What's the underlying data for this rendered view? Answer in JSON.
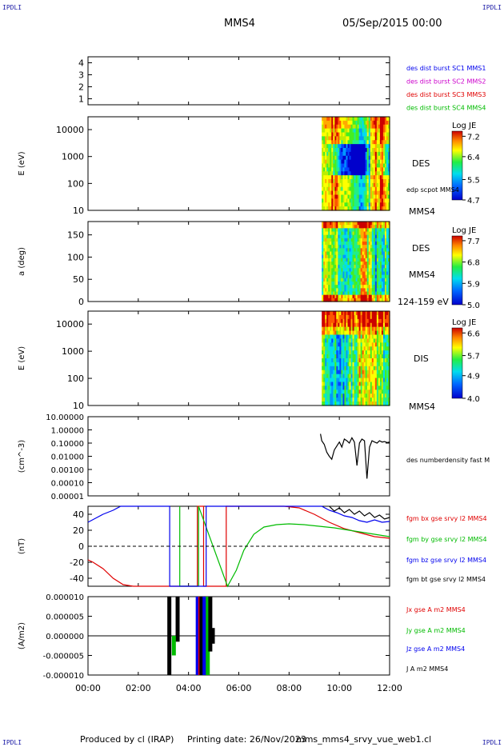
{
  "header": {
    "corner_tl": "IPDLI",
    "corner_tr": "IPDLI",
    "spacecraft": "MMS4",
    "date": "05/Sep/2015 00:00"
  },
  "footer": {
    "produced_by": "Produced by cl (IRAP)",
    "printing_date": "Printing date: 26/Nov/2023",
    "filename": "mms_mms4_srvy_vue_web1.cl",
    "corner_bl": "IPDLI",
    "corner_br": "IPDLI"
  },
  "time_axis": {
    "range_hours": [
      0,
      12
    ],
    "ticks": [
      "00:00",
      "02:00",
      "04:00",
      "06:00",
      "08:00",
      "10:00",
      "12:00"
    ],
    "tick_hours": [
      0,
      2,
      4,
      6,
      8,
      10,
      12
    ]
  },
  "colors": {
    "mms1": "#0000ee",
    "mms2": "#cc00cc",
    "mms3": "#e00000",
    "mms4": "#00bb00",
    "bx": "#e00000",
    "by": "#00bb00",
    "bz": "#0000ee",
    "bt": "#000000"
  },
  "chart_data": [
    {
      "type": "line",
      "name": "burst availability",
      "ylabel": "",
      "ylim": [
        0.5,
        4.5
      ],
      "yticks": [
        "1",
        "2",
        "3",
        "4"
      ],
      "legend": [
        {
          "label": "des dist burst SC1 MMS1",
          "color": "#0000ee"
        },
        {
          "label": "des dist burst SC2 MMS2",
          "color": "#cc00cc"
        },
        {
          "label": "des dist burst SC3 MMS3",
          "color": "#e00000"
        },
        {
          "label": "des dist burst SC4 MMS4",
          "color": "#00bb00"
        }
      ]
    },
    {
      "type": "heatmap",
      "name": "DES energy spectrogram",
      "ylabel": "E (eV)",
      "yscale": "log",
      "ylim": [
        10,
        30000
      ],
      "yticks": [
        "10",
        "100",
        "1000",
        "10000"
      ],
      "x_start_hours": 9.3,
      "colorbar": {
        "label": "Log JE",
        "ticks": [
          "7.2",
          "6.4",
          "5.5",
          "4.7"
        ],
        "min": 4.7,
        "max": 7.4
      },
      "labels": [
        "DES",
        "edp scpot MMS4",
        "MMS4"
      ]
    },
    {
      "type": "heatmap",
      "name": "DES pitch angle",
      "ylabel": "a (deg)",
      "ylim": [
        0,
        180
      ],
      "yticks": [
        "0",
        "50",
        "100",
        "150"
      ],
      "x_start_hours": 9.3,
      "colorbar": {
        "label": "Log JE",
        "ticks": [
          "7.7",
          "6.8",
          "5.9",
          "5.0"
        ],
        "min": 5.0,
        "max": 7.9
      },
      "labels": [
        "DES",
        "MMS4",
        "124-159 eV"
      ]
    },
    {
      "type": "heatmap",
      "name": "DIS energy spectrogram",
      "ylabel": "E (eV)",
      "yscale": "log",
      "ylim": [
        10,
        30000
      ],
      "yticks": [
        "10",
        "100",
        "1000",
        "10000"
      ],
      "x_start_hours": 9.3,
      "colorbar": {
        "label": "Log JE",
        "ticks": [
          "6.6",
          "5.7",
          "4.9",
          "4.0"
        ],
        "min": 4.0,
        "max": 6.8
      },
      "labels": [
        "DIS",
        "MMS4"
      ]
    },
    {
      "type": "line",
      "name": "density",
      "ylabel": "(cm^-3)",
      "yscale": "log",
      "ylim": [
        1e-05,
        10
      ],
      "yticks": [
        "10.00000",
        "1.00000",
        "0.10000",
        "0.01000",
        "0.00100",
        "0.00010",
        "0.00001"
      ],
      "series": [
        {
          "label": "des numberdensity fast M",
          "color": "#000000",
          "x": [
            9.25,
            9.3,
            9.4,
            9.5,
            9.6,
            9.7,
            9.8,
            9.9,
            10.0,
            10.1,
            10.2,
            10.3,
            10.4,
            10.5,
            10.6,
            10.7,
            10.8,
            10.9,
            11.0,
            11.1,
            11.2,
            11.3,
            11.4,
            11.5,
            11.6,
            11.7,
            11.8,
            11.9,
            12.0
          ],
          "y": [
            0.5,
            0.15,
            0.08,
            0.02,
            0.01,
            0.006,
            0.03,
            0.06,
            0.12,
            0.05,
            0.2,
            0.15,
            0.1,
            0.25,
            0.12,
            0.002,
            0.1,
            0.2,
            0.15,
            0.0002,
            0.05,
            0.15,
            0.12,
            0.1,
            0.15,
            0.12,
            0.13,
            0.11,
            0.12
          ]
        }
      ]
    },
    {
      "type": "line",
      "name": "magnetic field",
      "ylabel": "(nT)",
      "ylim": [
        -50,
        50
      ],
      "yticks": [
        "40",
        "20",
        "0",
        "-20",
        "-40"
      ],
      "series": [
        {
          "label": "fgm bx gse srvy l2 MMS4",
          "color": "#e00000",
          "x": [
            0,
            0.2,
            0.6,
            1.0,
            1.4,
            1.8,
            4.35,
            4.35,
            4.6,
            4.6,
            5.5,
            5.5,
            7.8,
            8.4,
            9.0,
            9.6,
            10.2,
            10.8,
            11.4,
            12.0
          ],
          "y": [
            -17,
            -20,
            -28,
            -40,
            -48,
            -52,
            -52,
            52,
            52,
            -52,
            -52,
            52,
            52,
            48,
            40,
            30,
            22,
            17,
            12,
            10
          ]
        },
        {
          "label": "fgm by gse srvy l2 MMS4",
          "color": "#00bb00",
          "x": [
            3.65,
            3.65,
            4.4,
            4.4,
            5.55,
            5.9,
            6.2,
            6.6,
            7.0,
            7.5,
            8.0,
            8.6,
            9.2,
            9.8,
            10.4,
            11.0,
            11.6,
            12.0
          ],
          "y": [
            52,
            -52,
            -52,
            52,
            -52,
            -30,
            -5,
            15,
            24,
            27,
            28,
            27,
            25,
            23,
            20,
            17,
            14,
            12
          ]
        },
        {
          "label": "fgm bz gse srvy l2 MMS4",
          "color": "#0000ee",
          "x": [
            0,
            0.3,
            0.6,
            1.0,
            1.3,
            3.25,
            3.25,
            4.7,
            4.7,
            9.3,
            9.6,
            9.9,
            10.2,
            10.5,
            10.8,
            11.1,
            11.4,
            11.7,
            12.0
          ],
          "y": [
            30,
            35,
            40,
            45,
            52,
            52,
            -52,
            -52,
            52,
            52,
            45,
            42,
            38,
            36,
            32,
            30,
            33,
            30,
            31
          ]
        },
        {
          "label": "fgm bt gse srvy l2 MMS4",
          "color": "#000000",
          "x": [
            9.6,
            9.8,
            10.0,
            10.2,
            10.4,
            10.6,
            10.8,
            11.0,
            11.2,
            11.4,
            11.6,
            11.8,
            12.0
          ],
          "y": [
            52,
            44,
            48,
            42,
            46,
            40,
            44,
            38,
            42,
            36,
            39,
            34,
            36
          ]
        }
      ]
    },
    {
      "type": "line",
      "name": "current density",
      "ylabel": "(A/m2)",
      "ylim": [
        -1e-05,
        1e-05
      ],
      "yticks": [
        "0.000010",
        "0.000005",
        "0.000000",
        "-0.000005",
        "-0.000010"
      ],
      "series": [
        {
          "label": "Jx gse A m2 MMS4",
          "color": "#e00000"
        },
        {
          "label": "Jy gse A m2 MMS4",
          "color": "#00bb00"
        },
        {
          "label": "Jz gse A m2 MMS4",
          "color": "#0000ee"
        },
        {
          "label": "J A m2 MMS4",
          "color": "#000000"
        }
      ]
    }
  ]
}
